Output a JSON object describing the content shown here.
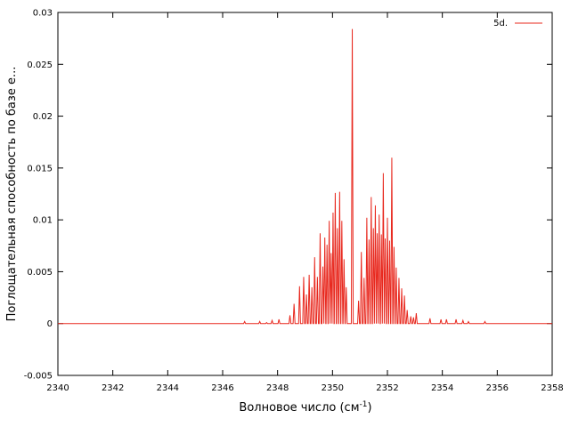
{
  "chart_data": {
    "type": "line",
    "title": "",
    "xlabel": "Волновое число (см",
    "xlabel_sup": "-1",
    "xlabel_end": ")",
    "ylabel": "Поглощательная способность по базе е...",
    "xlim": [
      2340,
      2358
    ],
    "ylim": [
      -0.005,
      0.03
    ],
    "xticks": [
      2340,
      2342,
      2344,
      2346,
      2348,
      2350,
      2352,
      2354,
      2356,
      2358
    ],
    "yticks": [
      -0.005,
      0,
      0.005,
      0.01,
      0.015,
      0.02,
      0.025,
      0.03
    ],
    "ytick_labels": [
      "-0.005",
      "0",
      "0.005",
      "0.01",
      "0.015",
      "0.02",
      "0.025",
      "0.03"
    ],
    "grid": false,
    "legend_position": "top-right",
    "series": [
      {
        "name": "5d.",
        "color": "#e8281e",
        "peaks": [
          [
            2346.8,
            0.0002
          ],
          [
            2347.35,
            0.0002
          ],
          [
            2347.6,
            0.0001
          ],
          [
            2347.8,
            0.0003
          ],
          [
            2348.05,
            0.0004
          ],
          [
            2348.45,
            0.0008
          ],
          [
            2348.6,
            0.0019
          ],
          [
            2348.8,
            0.0036
          ],
          [
            2348.95,
            0.0045
          ],
          [
            2349.05,
            0.0028
          ],
          [
            2349.15,
            0.0047
          ],
          [
            2349.25,
            0.0035
          ],
          [
            2349.35,
            0.0064
          ],
          [
            2349.45,
            0.0045
          ],
          [
            2349.55,
            0.0087
          ],
          [
            2349.65,
            0.0055
          ],
          [
            2349.72,
            0.0083
          ],
          [
            2349.8,
            0.0076
          ],
          [
            2349.88,
            0.0099
          ],
          [
            2349.95,
            0.0068
          ],
          [
            2350.02,
            0.0107
          ],
          [
            2350.1,
            0.0126
          ],
          [
            2350.18,
            0.0092
          ],
          [
            2350.26,
            0.0127
          ],
          [
            2350.34,
            0.0099
          ],
          [
            2350.42,
            0.0062
          ],
          [
            2350.5,
            0.0035
          ],
          [
            2350.72,
            0.0284
          ],
          [
            2350.95,
            0.0022
          ],
          [
            2351.05,
            0.0069
          ],
          [
            2351.15,
            0.0044
          ],
          [
            2351.25,
            0.0102
          ],
          [
            2351.33,
            0.0081
          ],
          [
            2351.41,
            0.0122
          ],
          [
            2351.49,
            0.0092
          ],
          [
            2351.56,
            0.0114
          ],
          [
            2351.63,
            0.0087
          ],
          [
            2351.7,
            0.0105
          ],
          [
            2351.78,
            0.0086
          ],
          [
            2351.85,
            0.0145
          ],
          [
            2351.92,
            0.0082
          ],
          [
            2352.0,
            0.0102
          ],
          [
            2352.08,
            0.008
          ],
          [
            2352.16,
            0.016
          ],
          [
            2352.24,
            0.0074
          ],
          [
            2352.32,
            0.0054
          ],
          [
            2352.42,
            0.0044
          ],
          [
            2352.52,
            0.0034
          ],
          [
            2352.62,
            0.0027
          ],
          [
            2352.72,
            0.0013
          ],
          [
            2352.85,
            0.0007
          ],
          [
            2352.95,
            0.0006
          ],
          [
            2353.05,
            0.001
          ],
          [
            2353.55,
            0.0005
          ],
          [
            2353.95,
            0.0004
          ],
          [
            2354.15,
            0.0004
          ],
          [
            2354.5,
            0.0004
          ],
          [
            2354.75,
            0.0003
          ],
          [
            2354.95,
            0.0002
          ],
          [
            2355.55,
            0.0002
          ]
        ]
      }
    ]
  }
}
